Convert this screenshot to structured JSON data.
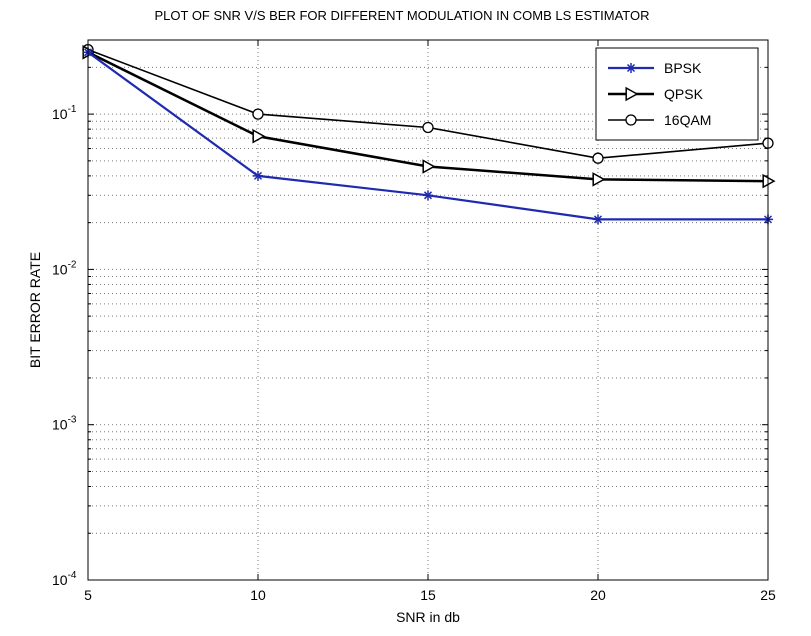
{
  "chart_data": {
    "type": "line",
    "title": "PLOT OF SNR V/S BER FOR DIFFERENT MODULATION IN COMB LS ESTIMATOR",
    "xlabel": "SNR in db",
    "ylabel": "BIT ERROR RATE",
    "x": [
      5,
      10,
      15,
      20,
      25
    ],
    "xlim": [
      5,
      25
    ],
    "ylim": [
      0.0001,
      0.3
    ],
    "yscale": "log",
    "grid": true,
    "legend_position": "top-right",
    "x_ticks": [
      "5",
      "10",
      "15",
      "20",
      "25"
    ],
    "y_ticks": [
      {
        "base": "10",
        "exp": "-1"
      },
      {
        "base": "10",
        "exp": "-2"
      },
      {
        "base": "10",
        "exp": "-3"
      },
      {
        "base": "10",
        "exp": "-4"
      }
    ],
    "series": [
      {
        "name": "BPSK",
        "values": [
          0.25,
          0.04,
          0.03,
          0.021,
          0.021
        ],
        "color": "#1f2ab0",
        "marker": "star"
      },
      {
        "name": "QPSK",
        "values": [
          0.25,
          0.072,
          0.046,
          0.038,
          0.037
        ],
        "color": "#000000",
        "marker": "triangle-right"
      },
      {
        "name": "16QAM",
        "values": [
          0.26,
          0.1,
          0.082,
          0.052,
          0.065
        ],
        "color": "#000000",
        "marker": "circle"
      }
    ]
  }
}
